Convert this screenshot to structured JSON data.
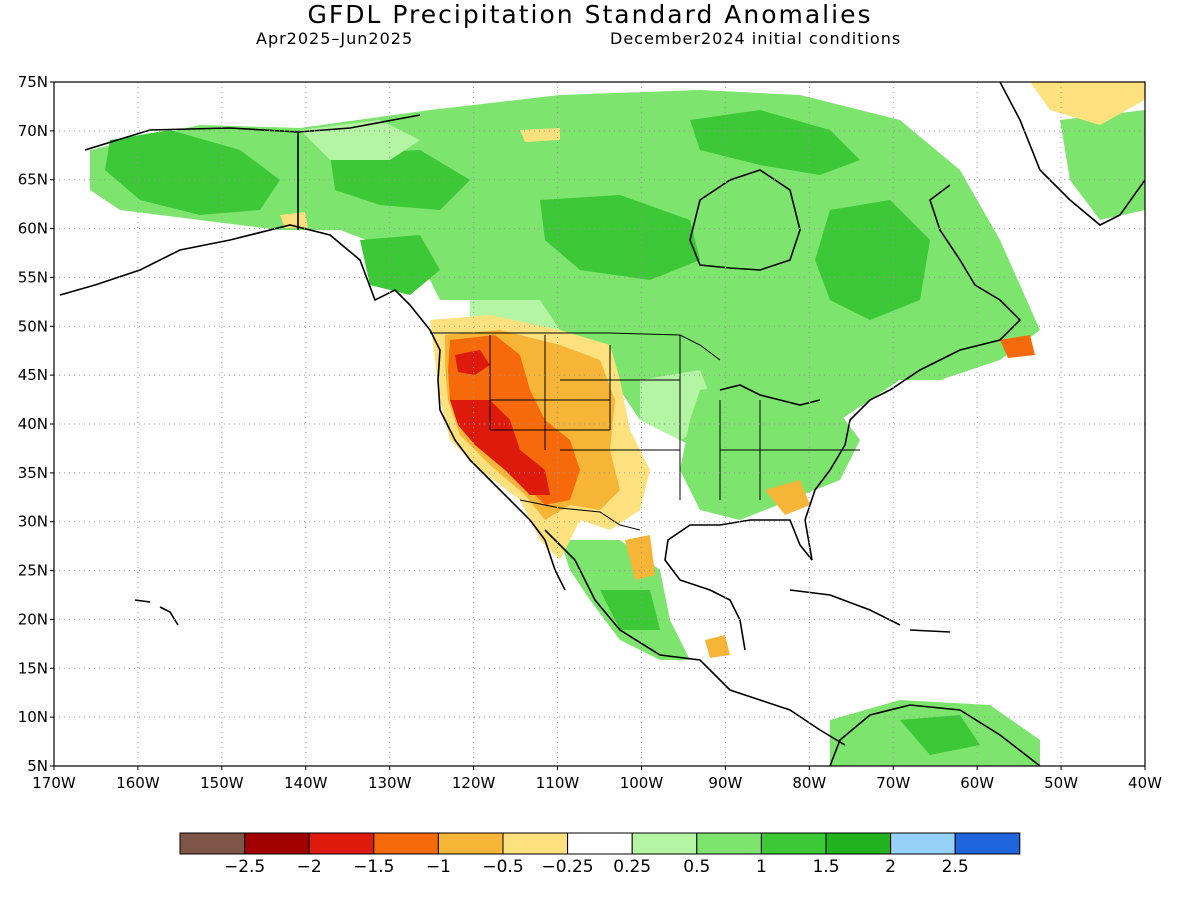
{
  "header": {
    "title": "GFDL Precipitation Standard Anomalies",
    "period": "Apr2025–Jun2025",
    "init": "December2024 initial conditions"
  },
  "map": {
    "lat_labels": [
      "75N",
      "70N",
      "65N",
      "60N",
      "55N",
      "50N",
      "45N",
      "40N",
      "35N",
      "30N",
      "25N",
      "20N",
      "15N",
      "10N",
      "5N"
    ],
    "lon_labels": [
      "170W",
      "160W",
      "150W",
      "140W",
      "130W",
      "120W",
      "110W",
      "100W",
      "90W",
      "80W",
      "70W",
      "60W",
      "50W",
      "40W"
    ]
  },
  "legend": {
    "colors": [
      "#7e5547",
      "#a00000",
      "#dd1a0c",
      "#f76a0c",
      "#f7b538",
      "#fde17e",
      "#ffffff",
      "#b4f5a4",
      "#7de46e",
      "#3cc837",
      "#22b11f",
      "#96d1fa",
      "#1e64dc"
    ],
    "labels": [
      "−2.5",
      "−2",
      "−1.5",
      "−1",
      "−0.5",
      "−0.25",
      "0.25",
      "0.5",
      "1",
      "1.5",
      "2",
      "2.5"
    ]
  }
}
